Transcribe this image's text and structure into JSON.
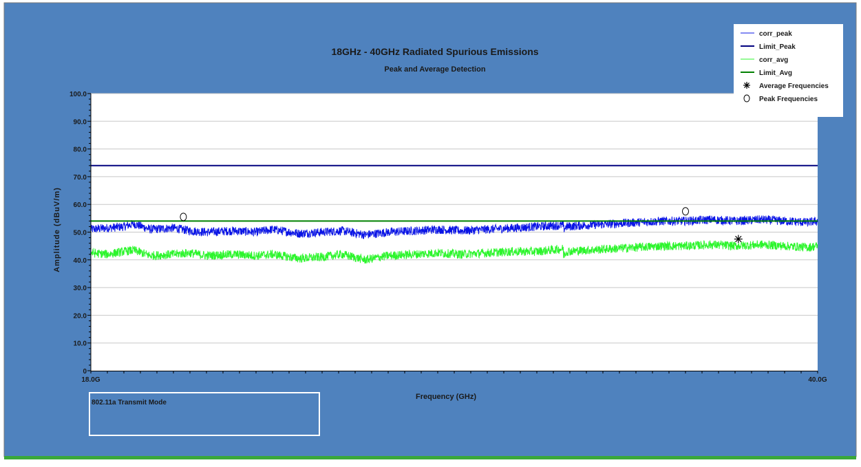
{
  "colors": {
    "panel_bg": "#4f82be",
    "plot_bg": "#ffffff",
    "corr_peak": "#0a14e6",
    "limit_peak": "#00007f",
    "corr_avg": "#2cf52c",
    "limit_avg": "#008000",
    "grid": "#c8c8c8",
    "bottom_strip": "#3aa83a"
  },
  "chart_data": {
    "type": "line",
    "title": "18GHz - 40GHz Radiated Spurious Emissions",
    "subtitle": "Peak and Average Detection",
    "xlabel": "Frequency (GHz)",
    "ylabel": "Amplitude (dBuV/m)",
    "xlim": [
      18,
      40
    ],
    "ylim": [
      0,
      100
    ],
    "x_tick_labels": [
      "18.0G",
      "40.0G"
    ],
    "y_ticks": [
      0,
      10,
      20,
      30,
      40,
      50,
      60,
      70,
      80,
      90,
      100
    ],
    "y_tick_labels": [
      "0",
      "10.0",
      "20.0",
      "30.0",
      "40.0",
      "50.0",
      "60.0",
      "70.0",
      "80.0",
      "90.0",
      "100.0"
    ],
    "grid": "horizontal",
    "legend_position": "top-right",
    "series": [
      {
        "name": "corr_peak",
        "color": "#0a14e6",
        "x": [
          18.0,
          18.5,
          19.0,
          19.3,
          19.8,
          20.5,
          21.0,
          21.5,
          22.3,
          23.0,
          23.5,
          24.3,
          25.0,
          25.6,
          26.3,
          27.0,
          27.8,
          28.5,
          29.2,
          30.0,
          30.8,
          31.5,
          32.3,
          32.3,
          32.4,
          33.0,
          33.8,
          34.5,
          35.3,
          36.0,
          36.8,
          37.5,
          38.3,
          39.0,
          39.7,
          40.0
        ],
        "y": [
          51,
          51.5,
          52,
          53,
          51,
          51.5,
          50.5,
          50,
          50.5,
          50,
          51,
          49.5,
          50,
          50.5,
          49,
          50,
          50.5,
          51,
          50.5,
          51,
          51.5,
          52,
          52.5,
          51,
          52,
          52.5,
          53,
          53.5,
          54,
          54,
          54.5,
          54,
          54.5,
          54,
          53.5,
          54
        ]
      },
      {
        "name": "Limit_Peak",
        "color": "#00007f",
        "x": [
          18,
          40
        ],
        "y": [
          74,
          74
        ]
      },
      {
        "name": "corr_avg",
        "color": "#2cf52c",
        "x": [
          18.0,
          18.5,
          19.0,
          19.3,
          19.8,
          20.5,
          21.0,
          21.5,
          22.3,
          23.0,
          23.5,
          24.3,
          25.0,
          25.6,
          26.3,
          27.0,
          27.8,
          28.5,
          29.2,
          30.0,
          30.8,
          31.5,
          32.3,
          32.3,
          32.4,
          33.0,
          33.8,
          34.5,
          35.3,
          36.0,
          36.8,
          37.5,
          38.3,
          39.0,
          39.7,
          40.0
        ],
        "y": [
          42.5,
          42,
          43,
          43.5,
          41.5,
          42,
          42.5,
          41.5,
          42,
          41.5,
          42,
          40.5,
          41,
          42,
          40,
          41.5,
          42,
          42.5,
          42,
          42.5,
          43,
          43,
          44,
          41.5,
          43,
          43.5,
          44,
          44.5,
          45,
          45,
          45.5,
          45,
          45.5,
          45,
          44.5,
          45
        ]
      },
      {
        "name": "Limit_Avg",
        "color": "#008000",
        "x": [
          18,
          40
        ],
        "y": [
          54,
          54
        ]
      }
    ],
    "markers": [
      {
        "name": "Peak Frequencies",
        "symbol": "circle",
        "points": [
          {
            "x": 20.8,
            "y": 55.5
          },
          {
            "x": 36.0,
            "y": 57.5
          }
        ]
      },
      {
        "name": "Average Frequencies",
        "symbol": "asterisk",
        "points": [
          {
            "x": 37.6,
            "y": 47.5
          }
        ]
      }
    ],
    "legend": [
      {
        "label": "corr_peak",
        "symbol": "line",
        "color": "#0a14e6"
      },
      {
        "label": "Limit_Peak",
        "symbol": "thick-line",
        "color": "#00007f"
      },
      {
        "label": "corr_avg",
        "symbol": "line",
        "color": "#2cf52c"
      },
      {
        "label": "Limit_Avg",
        "symbol": "thick-line",
        "color": "#008000"
      },
      {
        "label": "Average Frequencies",
        "symbol": "asterisk",
        "color": "#000000"
      },
      {
        "label": "Peak Frequencies",
        "symbol": "circle",
        "color": "#000000"
      }
    ],
    "annotation": "802.11a Transmit Mode"
  }
}
